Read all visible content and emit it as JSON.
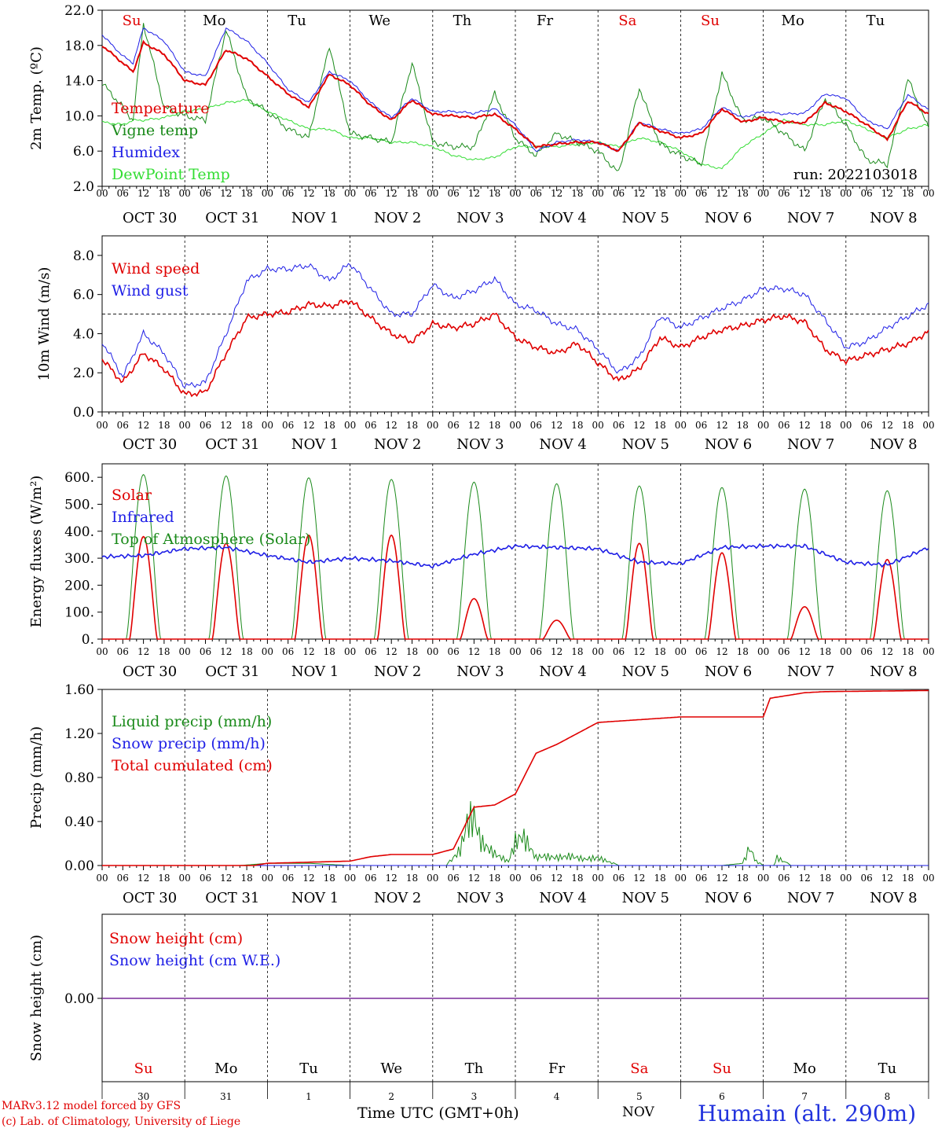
{
  "run_label": "run: 2022103018",
  "station": "Humain (alt. 290m)",
  "credit_line1": "MARv3.12 model forced by GFS",
  "credit_line2": "(c) Lab. of Climatology, University of Liege",
  "x_axis_title": "Time UTC (GMT+0h)",
  "month_label": "NOV",
  "hour_ticks": [
    "00",
    "06",
    "12",
    "18"
  ],
  "date_labels": [
    "OCT 30",
    "OCT 31",
    "NOV  1",
    "NOV  2",
    "NOV  3",
    "NOV  4",
    "NOV  5",
    "NOV  6",
    "NOV  7",
    "NOV  8"
  ],
  "days": [
    {
      "abbr": "Su",
      "weekend": true,
      "num": "30"
    },
    {
      "abbr": "Mo",
      "weekend": false,
      "num": "31"
    },
    {
      "abbr": "Tu",
      "weekend": false,
      "num": "1"
    },
    {
      "abbr": "We",
      "weekend": false,
      "num": "2"
    },
    {
      "abbr": "Th",
      "weekend": false,
      "num": "3"
    },
    {
      "abbr": "Fr",
      "weekend": false,
      "num": "4"
    },
    {
      "abbr": "Sa",
      "weekend": true,
      "num": "5"
    },
    {
      "abbr": "Su",
      "weekend": true,
      "num": "6"
    },
    {
      "abbr": "Mo",
      "weekend": false,
      "num": "7"
    },
    {
      "abbr": "Tu",
      "weekend": false,
      "num": "8"
    }
  ],
  "colors": {
    "red": "#e00000",
    "green": "#1a8a1a",
    "blue": "#1e1ee6",
    "lightgreen": "#33dd33",
    "weekend": "#e00000",
    "purple": "#7a2a9a"
  },
  "chart_data": [
    {
      "type": "line",
      "ylabel": "2m Temp. (ºC)",
      "ylim": [
        2,
        22
      ],
      "yticks": [
        "2.0",
        "6.0",
        "10.0",
        "14.0",
        "18.0",
        "22.0"
      ],
      "legend": [
        "Temperature",
        "Vigne temp",
        "Humidex",
        "DewPoint Temp"
      ],
      "x_hours": [
        0,
        6,
        9,
        12,
        18,
        24,
        30,
        36,
        42,
        48,
        54,
        60,
        66,
        72,
        78,
        84,
        90,
        96,
        102,
        108,
        114,
        120,
        126,
        132,
        138,
        144,
        150,
        156,
        162,
        168,
        174,
        180,
        186,
        192,
        198,
        204,
        210,
        216,
        222,
        228,
        234,
        240
      ],
      "series": [
        {
          "name": "Temperature",
          "color": "red",
          "values": [
            18.0,
            16.0,
            15.0,
            18.3,
            17.0,
            14.0,
            13.5,
            17.5,
            16.5,
            14.5,
            12.5,
            11.0,
            14.7,
            13.5,
            11.2,
            9.5,
            11.8,
            10.2,
            10.0,
            9.8,
            10.2,
            8.5,
            6.5,
            6.8,
            7.0,
            7.0,
            6.0,
            9.2,
            8.3,
            7.5,
            8.0,
            10.8,
            9.3,
            9.8,
            9.3,
            9.2,
            11.5,
            10.5,
            9.0,
            7.3,
            11.7,
            10.2
          ]
        },
        {
          "name": "Humidex",
          "color": "blue",
          "values": [
            19.2,
            16.8,
            16.0,
            20.0,
            18.5,
            15.0,
            14.5,
            20.0,
            18.5,
            16.0,
            13.0,
            11.5,
            15.0,
            14.0,
            11.5,
            9.8,
            12.0,
            10.5,
            10.5,
            10.3,
            10.8,
            9.0,
            6.0,
            7.0,
            7.3,
            7.0,
            6.0,
            9.3,
            8.5,
            8.0,
            8.5,
            11.0,
            9.8,
            10.5,
            10.2,
            10.3,
            12.5,
            12.0,
            9.5,
            8.5,
            12.4,
            10.7
          ]
        },
        {
          "name": "Vigne temp",
          "color": "green",
          "values": [
            13.7,
            11.0,
            9.5,
            20.5,
            11.0,
            10.0,
            9.5,
            19.8,
            12.0,
            10.5,
            8.5,
            7.5,
            18.0,
            8.0,
            7.5,
            7.0,
            16.0,
            7.0,
            6.5,
            6.5,
            12.5,
            7.5,
            5.5,
            8.0,
            7.0,
            6.0,
            3.5,
            13.2,
            6.8,
            5.5,
            4.5,
            14.8,
            9.5,
            9.8,
            8.0,
            6.0,
            12.0,
            9.0,
            5.0,
            4.5,
            14.2,
            8.5
          ]
        },
        {
          "name": "DewPoint Temp",
          "color": "lightgreen",
          "values": [
            9.3,
            9.0,
            9.5,
            9.5,
            9.8,
            10.5,
            10.8,
            11.5,
            11.8,
            10.5,
            9.5,
            8.5,
            8.5,
            7.5,
            7.5,
            7.0,
            7.0,
            6.5,
            5.5,
            5.0,
            5.3,
            6.5,
            6.5,
            6.5,
            6.8,
            7.0,
            6.5,
            7.5,
            7.0,
            6.0,
            4.5,
            4.0,
            6.5,
            8.0,
            9.5,
            9.0,
            9.0,
            9.5,
            8.5,
            7.5,
            8.5,
            9.0
          ]
        }
      ]
    },
    {
      "type": "line",
      "ylabel": "10m Wind (m/s)",
      "ylim": [
        0,
        9
      ],
      "yticks": [
        "0.0",
        "2.0",
        "4.0",
        "6.0",
        "8.0"
      ],
      "reference_line": 5,
      "legend": [
        "Wind speed",
        "Wind gust"
      ],
      "x_hours": [
        0,
        6,
        12,
        18,
        24,
        30,
        36,
        42,
        48,
        54,
        60,
        66,
        72,
        78,
        84,
        90,
        96,
        102,
        108,
        114,
        120,
        126,
        132,
        138,
        144,
        150,
        156,
        162,
        168,
        174,
        180,
        186,
        192,
        198,
        204,
        210,
        216,
        222,
        228,
        234,
        240
      ],
      "series": [
        {
          "name": "Wind speed",
          "color": "red",
          "values": [
            2.7,
            1.5,
            3.0,
            2.2,
            0.9,
            1.0,
            3.0,
            4.8,
            5.0,
            5.1,
            5.5,
            5.4,
            5.7,
            4.8,
            4.0,
            3.6,
            4.5,
            4.3,
            4.5,
            5.0,
            3.8,
            3.3,
            3.0,
            3.5,
            2.5,
            1.6,
            2.2,
            3.8,
            3.3,
            3.8,
            4.2,
            4.4,
            4.7,
            4.9,
            4.6,
            3.2,
            2.6,
            2.9,
            3.2,
            3.5,
            4.1
          ]
        },
        {
          "name": "Wind gust",
          "color": "blue",
          "values": [
            3.6,
            1.8,
            4.0,
            3.0,
            1.3,
            1.5,
            4.0,
            6.7,
            7.3,
            7.3,
            7.5,
            6.7,
            7.6,
            6.3,
            5.0,
            5.0,
            6.5,
            5.8,
            6.2,
            6.8,
            5.5,
            5.2,
            4.5,
            4.2,
            3.2,
            2.0,
            2.8,
            4.9,
            4.3,
            4.8,
            5.3,
            5.7,
            6.3,
            6.3,
            6.0,
            4.7,
            3.3,
            3.6,
            4.3,
            4.9,
            5.5
          ]
        }
      ]
    },
    {
      "type": "line",
      "ylabel": "Energy fluxes (W/m²)",
      "ylim": [
        0,
        650
      ],
      "yticks": [
        "0.",
        "100.",
        "200.",
        "300.",
        "400.",
        "500.",
        "600."
      ],
      "legend": [
        "Solar",
        "Infrared",
        "Top of Atmosphere (Solar)"
      ],
      "toa_peaks": [
        610,
        605,
        598,
        592,
        582,
        576,
        568,
        562,
        556,
        550
      ],
      "solar_peaks": [
        380,
        355,
        385,
        385,
        150,
        70,
        355,
        320,
        120,
        295
      ],
      "infrared": {
        "x_hours": [
          0,
          12,
          24,
          36,
          48,
          60,
          72,
          84,
          96,
          108,
          120,
          132,
          144,
          156,
          168,
          180,
          192,
          204,
          216,
          228,
          240
        ],
        "values": [
          305,
          310,
          335,
          340,
          310,
          285,
          300,
          290,
          270,
          315,
          345,
          340,
          335,
          285,
          280,
          340,
          345,
          345,
          285,
          275,
          340
        ]
      }
    },
    {
      "type": "line",
      "ylabel": "Precip (mm/h)",
      "ylim": [
        0,
        1.6
      ],
      "yticks": [
        "0.00",
        "0.40",
        "0.80",
        "1.20",
        "1.60"
      ],
      "legend": [
        "Liquid precip (mm/h)",
        "Snow precip (mm/h)",
        "Total cumulated (cm)"
      ],
      "cumulative": {
        "x_hours": [
          0,
          44,
          48,
          60,
          72,
          78,
          84,
          90,
          96,
          102,
          108,
          114,
          120,
          126,
          132,
          138,
          144,
          168,
          192,
          194,
          198,
          204,
          210,
          240
        ],
        "values": [
          0,
          0,
          0.02,
          0.03,
          0.04,
          0.08,
          0.1,
          0.1,
          0.1,
          0.15,
          0.53,
          0.55,
          0.65,
          1.02,
          1.1,
          1.2,
          1.3,
          1.35,
          1.35,
          1.52,
          1.54,
          1.57,
          1.58,
          1.59
        ]
      },
      "liquid": {
        "x_hours": [
          0,
          40,
          48,
          60,
          72,
          100,
          104,
          106,
          108,
          110,
          114,
          118,
          120,
          122,
          124,
          126,
          128,
          132,
          136,
          140,
          144,
          150,
          180,
          186,
          188,
          190,
          192,
          195,
          196,
          200,
          240
        ],
        "values": [
          0,
          0,
          0.02,
          0.02,
          0,
          0,
          0.2,
          0.55,
          0.62,
          0.3,
          0.15,
          0.05,
          0.3,
          0.38,
          0.25,
          0.1,
          0.12,
          0.1,
          0.12,
          0.08,
          0.1,
          0,
          0,
          0.02,
          0.23,
          0.05,
          0,
          0,
          0.1,
          0,
          0
        ]
      }
    },
    {
      "type": "line",
      "ylabel": "Snow height (cm)",
      "yticks": [
        "0.00"
      ],
      "legend": [
        "Snow height (cm)",
        "Snow height (cm W.E.)"
      ],
      "series": [
        {
          "name": "Snow height (cm)",
          "color": "purple",
          "values": [
            0,
            0
          ]
        }
      ]
    }
  ]
}
